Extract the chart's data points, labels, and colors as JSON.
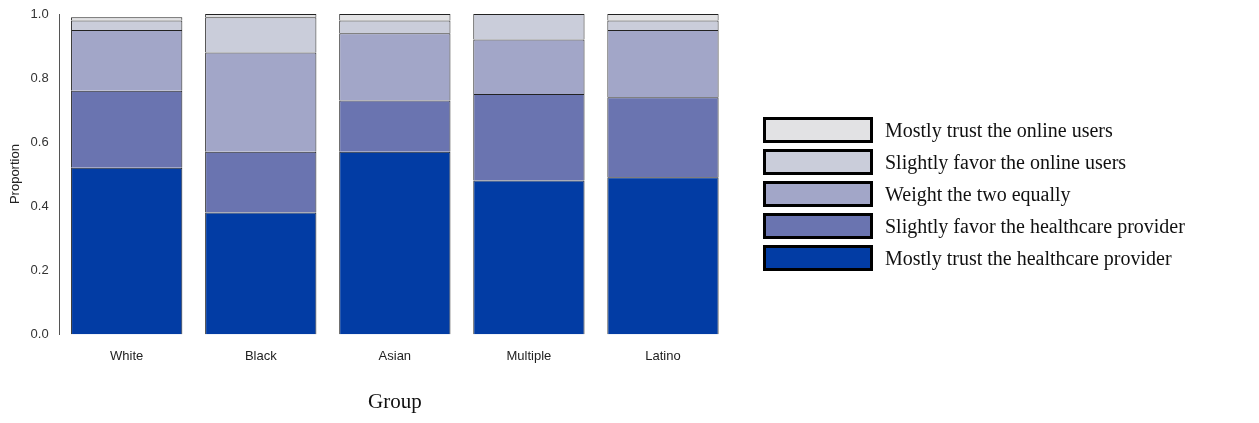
{
  "chart_data": {
    "type": "bar",
    "stacked": true,
    "xlabel": "Group",
    "ylabel": "Proportion",
    "categories": [
      "White",
      "Black",
      "Asian",
      "Multiple",
      "Latino"
    ],
    "series": [
      {
        "name": "Mostly trust the healthcare provider",
        "color": "#023ca4",
        "values": [
          0.52,
          0.38,
          0.57,
          0.48,
          0.49
        ]
      },
      {
        "name": "Slightly favor the healthcare provider",
        "color": "#6a74b0",
        "values": [
          0.24,
          0.19,
          0.16,
          0.27,
          0.25
        ]
      },
      {
        "name": "Weight the two equally",
        "color": "#a2a6c8",
        "values": [
          0.19,
          0.31,
          0.21,
          0.17,
          0.21
        ]
      },
      {
        "name": "Slightly favor the online users",
        "color": "#cacdda",
        "values": [
          0.03,
          0.11,
          0.04,
          0.08,
          0.03
        ]
      },
      {
        "name": "Mostly trust the online users",
        "color": "#e2e2e4",
        "values": [
          0.01,
          0.01,
          0.02,
          0,
          0.02
        ]
      }
    ],
    "ylim": [
      0,
      1
    ],
    "yticks": [
      {
        "value": 0,
        "label": "0.0"
      },
      {
        "value": 0.2,
        "label": "0.2"
      },
      {
        "value": 0.4,
        "label": "0.4"
      },
      {
        "value": 0.6,
        "label": "0.6"
      },
      {
        "value": 0.8,
        "label": "0.8"
      },
      {
        "value": 1,
        "label": "1.0"
      }
    ],
    "legend": "right",
    "grid": false
  }
}
